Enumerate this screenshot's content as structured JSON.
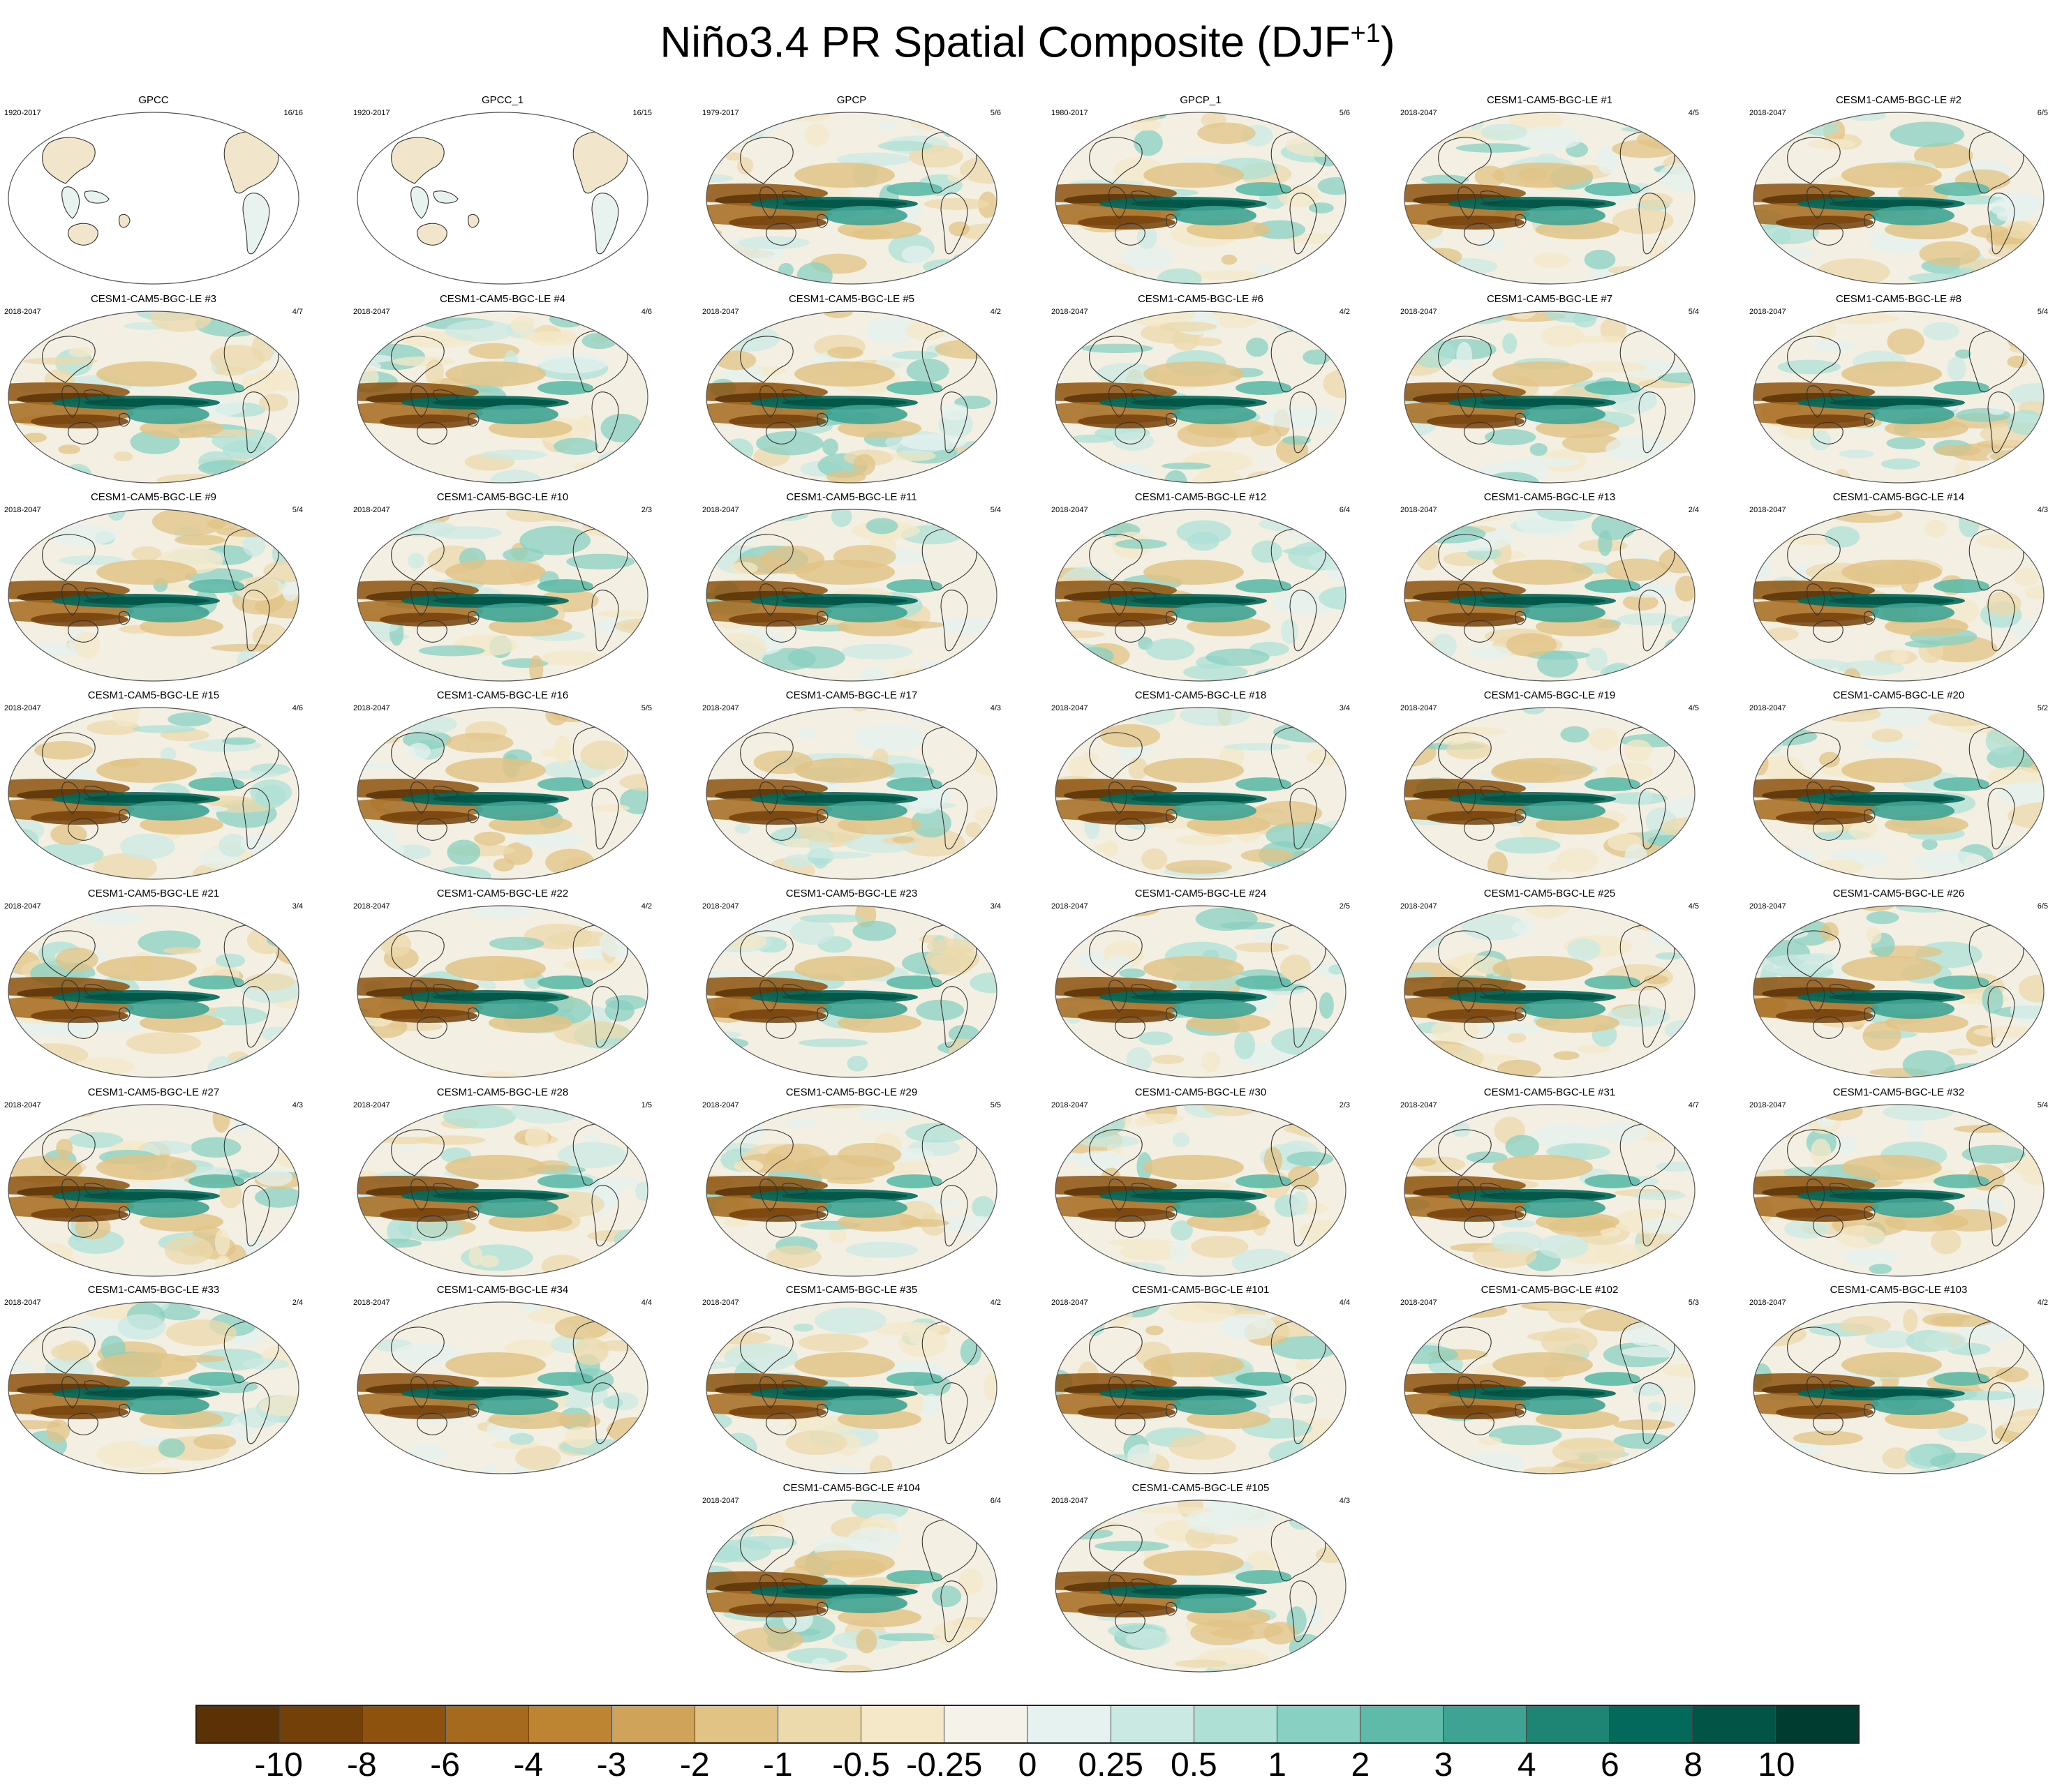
{
  "chart_data": {
    "type": "map-grid",
    "title": "Niño3.4 PR Spatial Composite (DJF",
    "title_superscript": "+1",
    "title_close": ")",
    "panels": [
      {
        "name": "GPCC",
        "years": "1920-2017",
        "count": "16/16",
        "land_only": true
      },
      {
        "name": "GPCC_1",
        "years": "1920-2017",
        "count": "16/15",
        "land_only": true
      },
      {
        "name": "GPCP",
        "years": "1979-2017",
        "count": "5/6"
      },
      {
        "name": "GPCP_1",
        "years": "1980-2017",
        "count": "5/6"
      },
      {
        "name": "CESM1-CAM5-BGC-LE #1",
        "years": "2018-2047",
        "count": "4/5"
      },
      {
        "name": "CESM1-CAM5-BGC-LE #2",
        "years": "2018-2047",
        "count": "6/5"
      },
      {
        "name": "CESM1-CAM5-BGC-LE #3",
        "years": "2018-2047",
        "count": "4/7"
      },
      {
        "name": "CESM1-CAM5-BGC-LE #4",
        "years": "2018-2047",
        "count": "4/6"
      },
      {
        "name": "CESM1-CAM5-BGC-LE #5",
        "years": "2018-2047",
        "count": "4/2"
      },
      {
        "name": "CESM1-CAM5-BGC-LE #6",
        "years": "2018-2047",
        "count": "4/2"
      },
      {
        "name": "CESM1-CAM5-BGC-LE #7",
        "years": "2018-2047",
        "count": "5/4"
      },
      {
        "name": "CESM1-CAM5-BGC-LE #8",
        "years": "2018-2047",
        "count": "5/4"
      },
      {
        "name": "CESM1-CAM5-BGC-LE #9",
        "years": "2018-2047",
        "count": "5/4"
      },
      {
        "name": "CESM1-CAM5-BGC-LE #10",
        "years": "2018-2047",
        "count": "2/3"
      },
      {
        "name": "CESM1-CAM5-BGC-LE #11",
        "years": "2018-2047",
        "count": "5/4"
      },
      {
        "name": "CESM1-CAM5-BGC-LE #12",
        "years": "2018-2047",
        "count": "6/4"
      },
      {
        "name": "CESM1-CAM5-BGC-LE #13",
        "years": "2018-2047",
        "count": "2/4"
      },
      {
        "name": "CESM1-CAM5-BGC-LE #14",
        "years": "2018-2047",
        "count": "4/3"
      },
      {
        "name": "CESM1-CAM5-BGC-LE #15",
        "years": "2018-2047",
        "count": "4/6"
      },
      {
        "name": "CESM1-CAM5-BGC-LE #16",
        "years": "2018-2047",
        "count": "5/5"
      },
      {
        "name": "CESM1-CAM5-BGC-LE #17",
        "years": "2018-2047",
        "count": "4/3"
      },
      {
        "name": "CESM1-CAM5-BGC-LE #18",
        "years": "2018-2047",
        "count": "3/4"
      },
      {
        "name": "CESM1-CAM5-BGC-LE #19",
        "years": "2018-2047",
        "count": "4/5"
      },
      {
        "name": "CESM1-CAM5-BGC-LE #20",
        "years": "2018-2047",
        "count": "5/2"
      },
      {
        "name": "CESM1-CAM5-BGC-LE #21",
        "years": "2018-2047",
        "count": "3/4"
      },
      {
        "name": "CESM1-CAM5-BGC-LE #22",
        "years": "2018-2047",
        "count": "4/2"
      },
      {
        "name": "CESM1-CAM5-BGC-LE #23",
        "years": "2018-2047",
        "count": "3/4"
      },
      {
        "name": "CESM1-CAM5-BGC-LE #24",
        "years": "2018-2047",
        "count": "2/5"
      },
      {
        "name": "CESM1-CAM5-BGC-LE #25",
        "years": "2018-2047",
        "count": "4/5"
      },
      {
        "name": "CESM1-CAM5-BGC-LE #26",
        "years": "2018-2047",
        "count": "6/5"
      },
      {
        "name": "CESM1-CAM5-BGC-LE #27",
        "years": "2018-2047",
        "count": "4/3"
      },
      {
        "name": "CESM1-CAM5-BGC-LE #28",
        "years": "2018-2047",
        "count": "1/5"
      },
      {
        "name": "CESM1-CAM5-BGC-LE #29",
        "years": "2018-2047",
        "count": "5/5"
      },
      {
        "name": "CESM1-CAM5-BGC-LE #30",
        "years": "2018-2047",
        "count": "2/3"
      },
      {
        "name": "CESM1-CAM5-BGC-LE #31",
        "years": "2018-2047",
        "count": "4/7"
      },
      {
        "name": "CESM1-CAM5-BGC-LE #32",
        "years": "2018-2047",
        "count": "5/4"
      },
      {
        "name": "CESM1-CAM5-BGC-LE #33",
        "years": "2018-2047",
        "count": "2/4"
      },
      {
        "name": "CESM1-CAM5-BGC-LE #34",
        "years": "2018-2047",
        "count": "4/4"
      },
      {
        "name": "CESM1-CAM5-BGC-LE #35",
        "years": "2018-2047",
        "count": "4/2"
      },
      {
        "name": "CESM1-CAM5-BGC-LE #101",
        "years": "2018-2047",
        "count": "4/4"
      },
      {
        "name": "CESM1-CAM5-BGC-LE #102",
        "years": "2018-2047",
        "count": "5/3"
      },
      {
        "name": "CESM1-CAM5-BGC-LE #103",
        "years": "2018-2047",
        "count": "4/2"
      },
      {
        "name": "CESM1-CAM5-BGC-LE #104",
        "years": "2018-2047",
        "count": "6/4"
      },
      {
        "name": "CESM1-CAM5-BGC-LE #105",
        "years": "2018-2047",
        "count": "4/3"
      }
    ],
    "colorbar": {
      "labels": [
        "-10",
        "-8",
        "-6",
        "-4",
        "-3",
        "-2",
        "-1",
        "-0.5",
        "-0.25",
        "0",
        "0.25",
        "0.5",
        "1",
        "2",
        "3",
        "4",
        "6",
        "8",
        "10"
      ],
      "colors": [
        "#5a3206",
        "#744009",
        "#8c520e",
        "#a66a1e",
        "#bd8532",
        "#cfa35a",
        "#e1c386",
        "#ecd9ac",
        "#f4e8c8",
        "#f5f2e9",
        "#e6f2ef",
        "#cbe9e3",
        "#aee0d6",
        "#88d0c2",
        "#5fbaa9",
        "#3fa393",
        "#1e8575",
        "#02695b",
        "#015446",
        "#003c30"
      ]
    }
  }
}
